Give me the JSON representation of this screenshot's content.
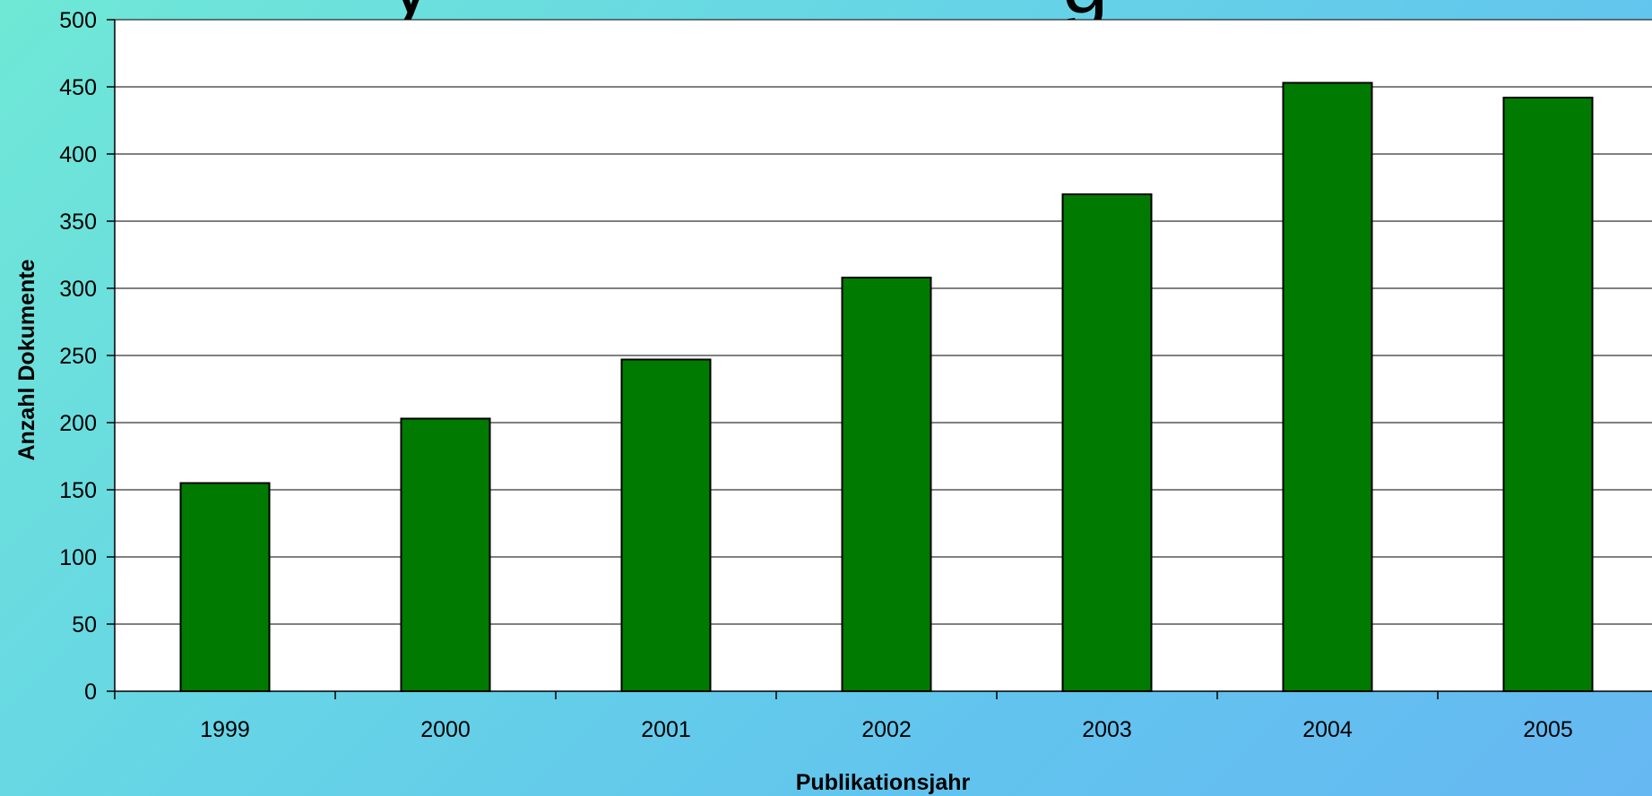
{
  "chart_data": {
    "type": "bar",
    "categories": [
      "1999",
      "2000",
      "2001",
      "2002",
      "2003",
      "2004",
      "2005"
    ],
    "values": [
      155,
      203,
      247,
      308,
      370,
      453,
      442
    ],
    "xlabel": "Publikationsjahr",
    "ylabel": "Anzahl Dokumente",
    "ylim": [
      0,
      500
    ],
    "yticks": [
      0,
      50,
      100,
      150,
      200,
      250,
      300,
      350,
      400,
      450,
      500
    ],
    "grid": true,
    "legend": "none",
    "bar_color": "#007a00",
    "plot_background": "#ffffff"
  }
}
